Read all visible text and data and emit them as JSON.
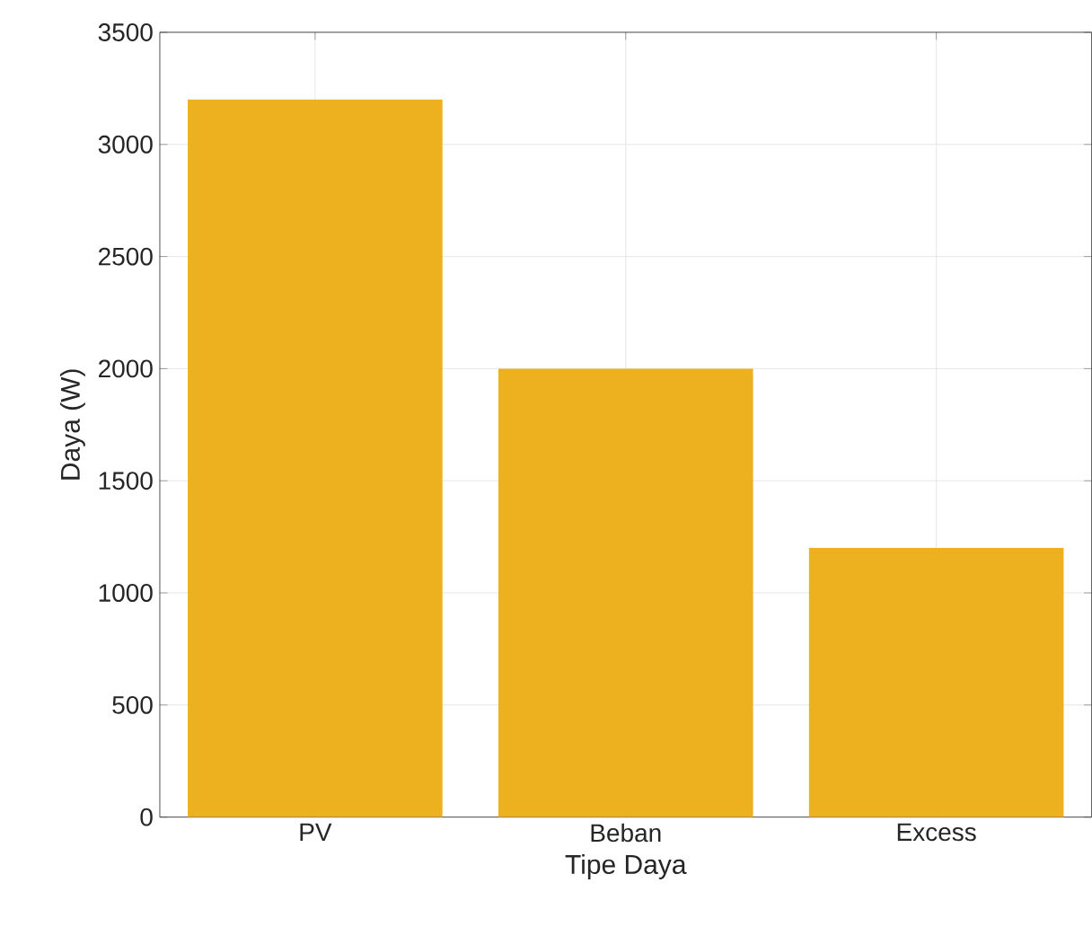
{
  "chart_data": {
    "type": "bar",
    "xlabel": "Tipe Daya",
    "ylabel": "Daya (W)",
    "categories": [
      "PV",
      "Beban",
      "Excess"
    ],
    "values": [
      3200,
      2000,
      1200
    ],
    "color": "#edb120",
    "ylim": [
      0,
      3500
    ],
    "yticks": [
      0,
      500,
      1000,
      1500,
      2000,
      2500,
      3000,
      3500
    ],
    "grid": true
  }
}
